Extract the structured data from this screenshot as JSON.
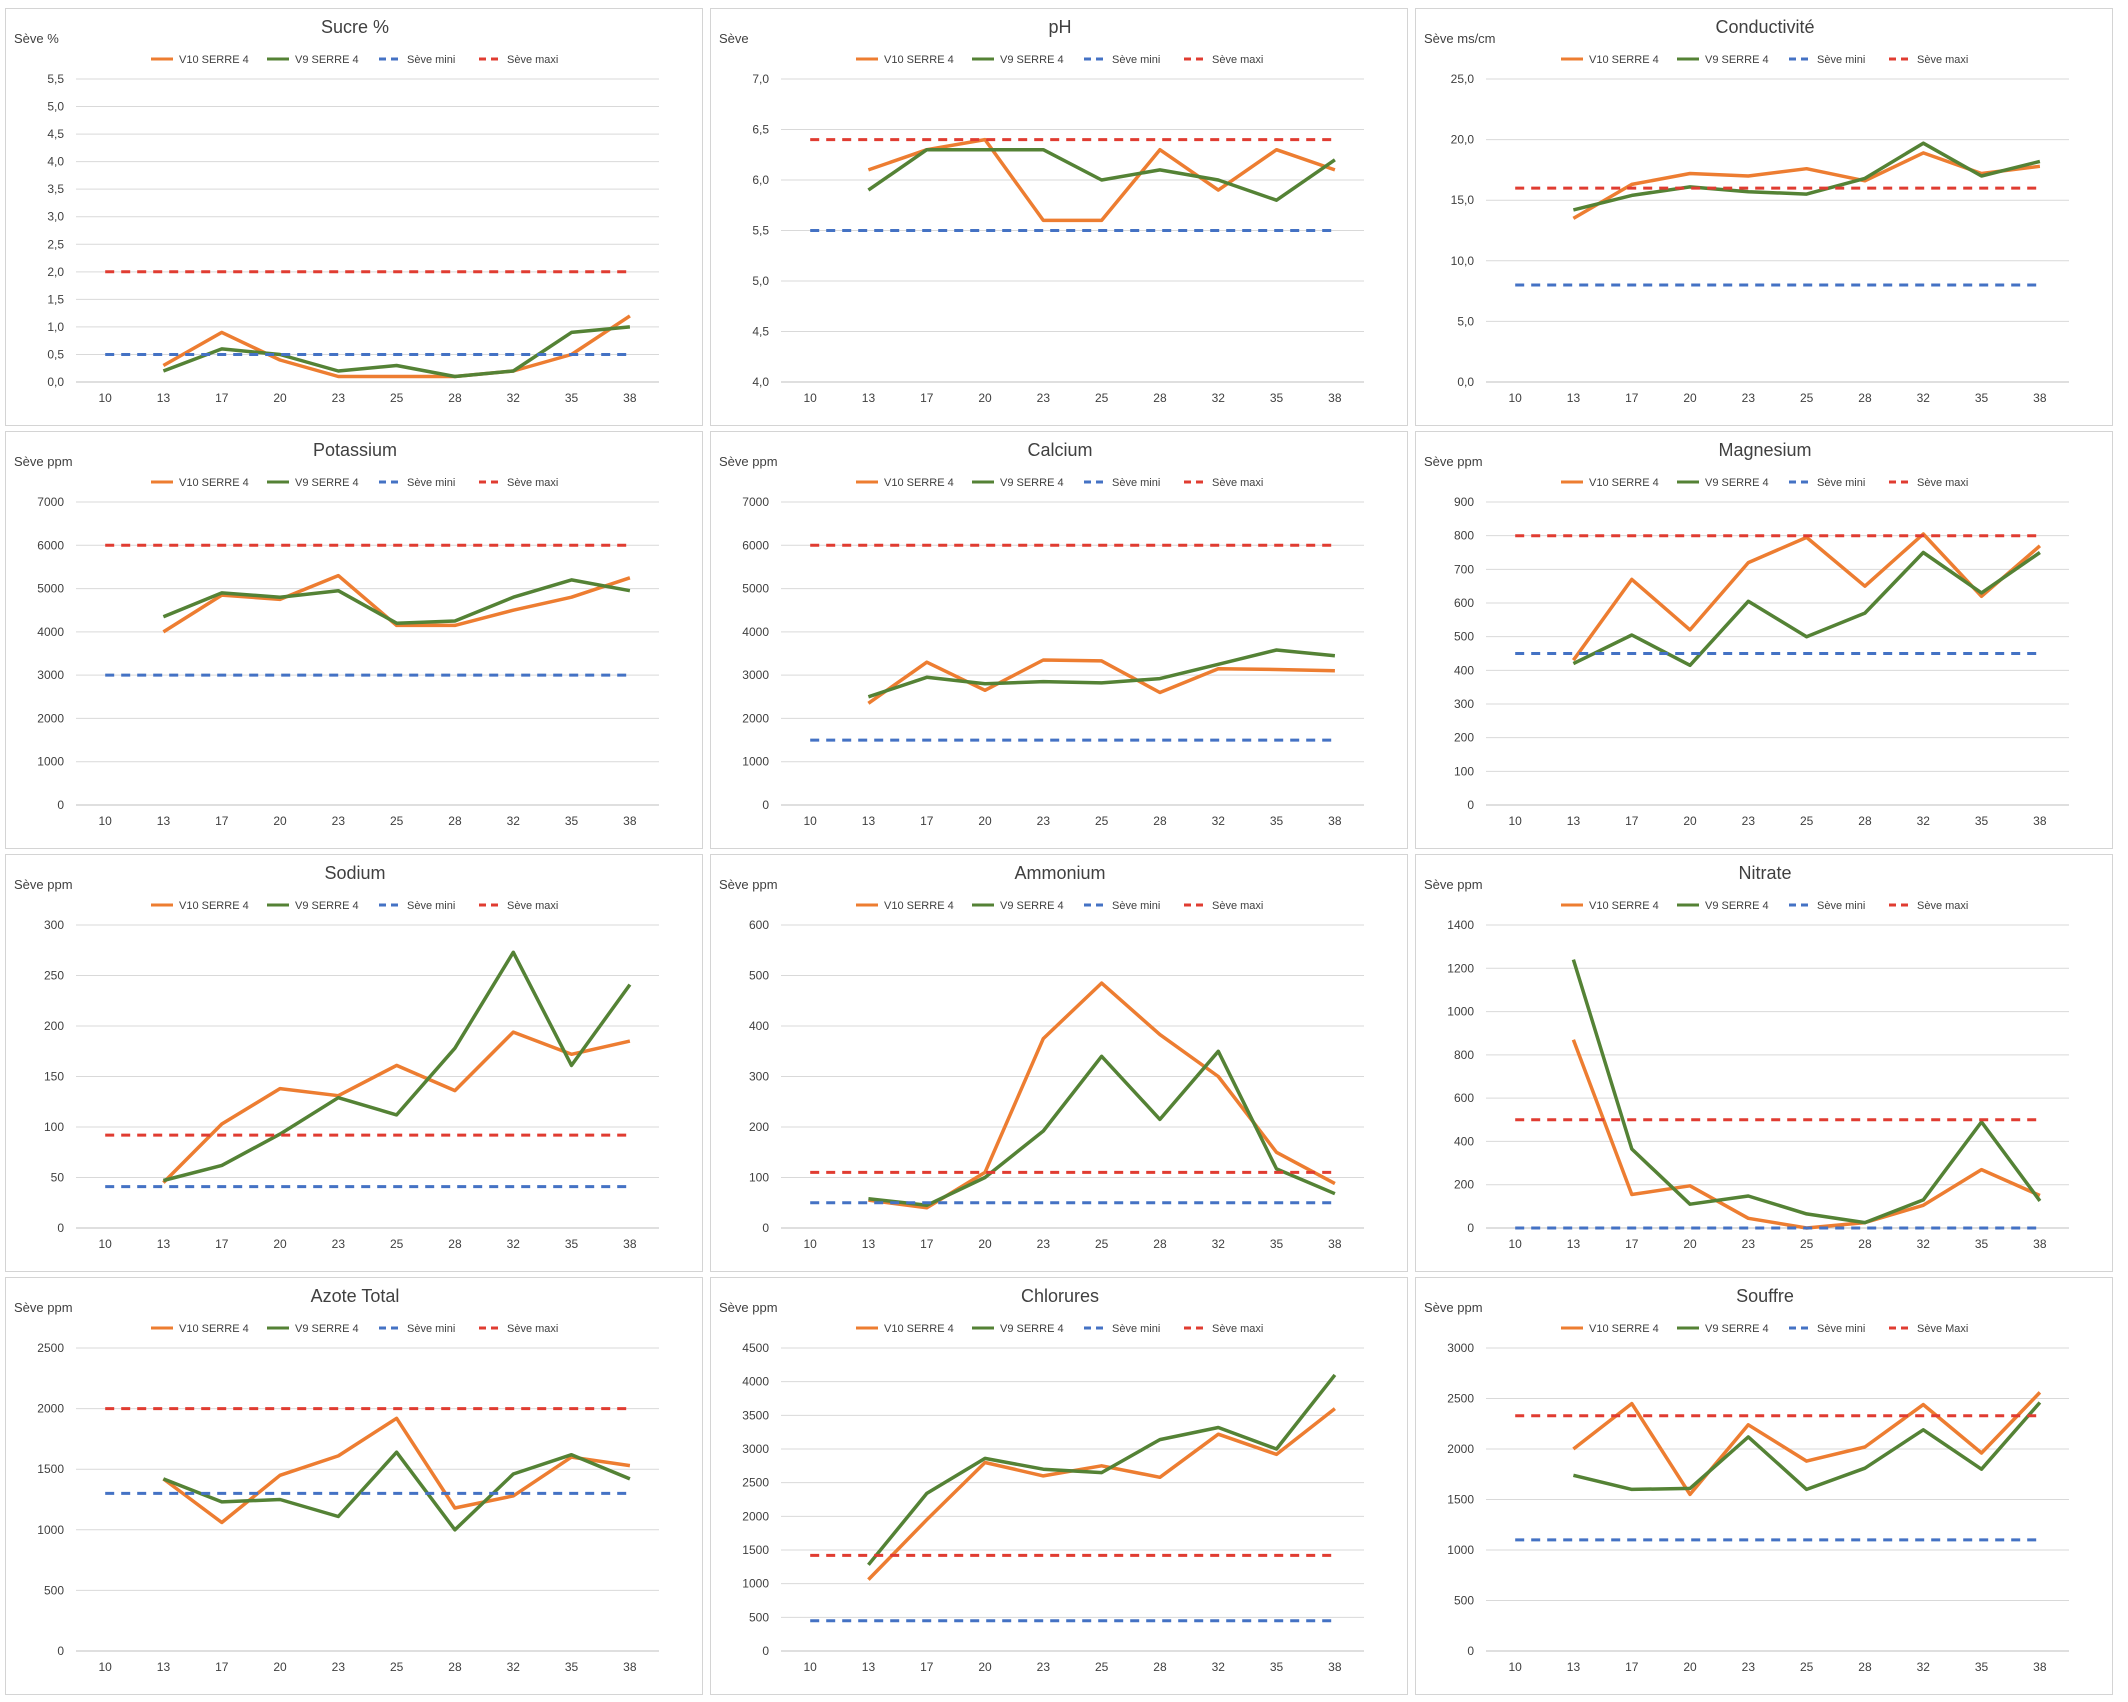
{
  "colors": {
    "v10": "#ed7d31",
    "v9": "#548235",
    "mini": "#4472c4",
    "maxi": "#e03c31"
  },
  "chart_data": [
    {
      "type": "line",
      "title": "Sucre %",
      "ylabel": "Sève %",
      "ylim": [
        0,
        5.5
      ],
      "yticks": [
        "0,0",
        "0,5",
        "1,0",
        "1,5",
        "2,0",
        "2,5",
        "3,0",
        "3,5",
        "4,0",
        "4,5",
        "5,0",
        "5,5"
      ],
      "categories": [
        "10",
        "13",
        "17",
        "20",
        "23",
        "25",
        "28",
        "32",
        "35",
        "38"
      ],
      "legend": "top",
      "series": [
        {
          "name": "V10 SERRE 4",
          "kind": "v10",
          "values": [
            null,
            0.3,
            0.9,
            0.4,
            0.1,
            0.1,
            0.1,
            0.2,
            0.5,
            1.2
          ]
        },
        {
          "name": "V9 SERRE 4",
          "kind": "v9",
          "values": [
            null,
            0.2,
            0.6,
            0.5,
            0.2,
            0.3,
            0.1,
            0.2,
            0.9,
            1.0
          ]
        },
        {
          "name": "Sève mini",
          "kind": "mini",
          "values": [
            0.5,
            0.5,
            0.5,
            0.5,
            0.5,
            0.5,
            0.5,
            0.5,
            0.5,
            0.5
          ]
        },
        {
          "name": "Sève maxi",
          "kind": "maxi",
          "values": [
            2.0,
            2.0,
            2.0,
            2.0,
            2.0,
            2.0,
            2.0,
            2.0,
            2.0,
            2.0
          ]
        }
      ]
    },
    {
      "type": "line",
      "title": "pH",
      "ylabel": "Sève",
      "ylim": [
        4.0,
        7.0
      ],
      "yticks": [
        "4,0",
        "4,5",
        "5,0",
        "5,5",
        "6,0",
        "6,5",
        "7,0"
      ],
      "categories": [
        "10",
        "13",
        "17",
        "20",
        "23",
        "25",
        "28",
        "32",
        "35",
        "38"
      ],
      "legend": "top",
      "series": [
        {
          "name": "V10 SERRE 4",
          "kind": "v10",
          "values": [
            null,
            6.1,
            6.3,
            6.4,
            5.6,
            5.6,
            6.3,
            5.9,
            6.3,
            6.1
          ]
        },
        {
          "name": "V9 SERRE 4",
          "kind": "v9",
          "values": [
            null,
            5.9,
            6.3,
            6.3,
            6.3,
            6.0,
            6.1,
            6.0,
            5.8,
            6.2
          ]
        },
        {
          "name": "Sève mini",
          "kind": "mini",
          "values": [
            5.5,
            5.5,
            5.5,
            5.5,
            5.5,
            5.5,
            5.5,
            5.5,
            5.5,
            5.5
          ]
        },
        {
          "name": "Sève maxi",
          "kind": "maxi",
          "values": [
            6.4,
            6.4,
            6.4,
            6.4,
            6.4,
            6.4,
            6.4,
            6.4,
            6.4,
            6.4
          ]
        }
      ]
    },
    {
      "type": "line",
      "title": "Conductivité",
      "ylabel": "Sève ms/cm",
      "ylim": [
        0,
        25
      ],
      "yticks": [
        "0,0",
        "5,0",
        "10,0",
        "15,0",
        "20,0",
        "25,0"
      ],
      "categories": [
        "10",
        "13",
        "17",
        "20",
        "23",
        "25",
        "28",
        "32",
        "35",
        "38"
      ],
      "legend": "top",
      "series": [
        {
          "name": "V10 SERRE 4",
          "kind": "v10",
          "values": [
            null,
            13.5,
            16.3,
            17.2,
            17.0,
            17.6,
            16.6,
            18.9,
            17.2,
            17.8
          ]
        },
        {
          "name": "V9 SERRE 4",
          "kind": "v9",
          "values": [
            null,
            14.2,
            15.4,
            16.1,
            15.7,
            15.5,
            16.8,
            19.7,
            17.0,
            18.2
          ]
        },
        {
          "name": "Sève mini",
          "kind": "mini",
          "values": [
            8,
            8,
            8,
            8,
            8,
            8,
            8,
            8,
            8,
            8
          ]
        },
        {
          "name": "Sève maxi",
          "kind": "maxi",
          "values": [
            16,
            16,
            16,
            16,
            16,
            16,
            16,
            16,
            16,
            16
          ]
        }
      ]
    },
    {
      "type": "line",
      "title": "Potassium",
      "ylabel": "Sève ppm",
      "ylim": [
        0,
        7000
      ],
      "yticks": [
        "0",
        "1000",
        "2000",
        "3000",
        "4000",
        "5000",
        "6000",
        "7000"
      ],
      "categories": [
        "10",
        "13",
        "17",
        "20",
        "23",
        "25",
        "28",
        "32",
        "35",
        "38"
      ],
      "legend": "top",
      "series": [
        {
          "name": "V10 SERRE 4",
          "kind": "v10",
          "values": [
            null,
            4000,
            4850,
            4750,
            5300,
            4150,
            4150,
            4500,
            4800,
            5250
          ]
        },
        {
          "name": "V9 SERRE 4",
          "kind": "v9",
          "values": [
            null,
            4350,
            4900,
            4800,
            4950,
            4200,
            4250,
            4800,
            5200,
            4950
          ]
        },
        {
          "name": "Sève mini",
          "kind": "mini",
          "values": [
            3000,
            3000,
            3000,
            3000,
            3000,
            3000,
            3000,
            3000,
            3000,
            3000
          ]
        },
        {
          "name": "Sève maxi",
          "kind": "maxi",
          "values": [
            6000,
            6000,
            6000,
            6000,
            6000,
            6000,
            6000,
            6000,
            6000,
            6000
          ]
        }
      ]
    },
    {
      "type": "line",
      "title": "Calcium",
      "ylabel": "Sève ppm",
      "ylim": [
        0,
        7000
      ],
      "yticks": [
        "0",
        "1000",
        "2000",
        "3000",
        "4000",
        "5000",
        "6000",
        "7000"
      ],
      "categories": [
        "10",
        "13",
        "17",
        "20",
        "23",
        "25",
        "28",
        "32",
        "35",
        "38"
      ],
      "legend": "top",
      "series": [
        {
          "name": "V10 SERRE 4",
          "kind": "v10",
          "values": [
            null,
            2350,
            3300,
            2650,
            3350,
            3330,
            2600,
            3150,
            3130,
            3100
          ]
        },
        {
          "name": "V9 SERRE 4",
          "kind": "v9",
          "values": [
            null,
            2500,
            2950,
            2800,
            2850,
            2820,
            2920,
            3250,
            3580,
            3450
          ]
        },
        {
          "name": "Sève mini",
          "kind": "mini",
          "values": [
            1500,
            1500,
            1500,
            1500,
            1500,
            1500,
            1500,
            1500,
            1500,
            1500
          ]
        },
        {
          "name": "Sève maxi",
          "kind": "maxi",
          "values": [
            6000,
            6000,
            6000,
            6000,
            6000,
            6000,
            6000,
            6000,
            6000,
            6000
          ]
        }
      ]
    },
    {
      "type": "line",
      "title": "Magnesium",
      "ylabel": "Sève ppm",
      "ylim": [
        0,
        900
      ],
      "yticks": [
        "0",
        "100",
        "200",
        "300",
        "400",
        "500",
        "600",
        "700",
        "800",
        "900"
      ],
      "categories": [
        "10",
        "13",
        "17",
        "20",
        "23",
        "25",
        "28",
        "32",
        "35",
        "38"
      ],
      "legend": "top",
      "series": [
        {
          "name": "V10 SERRE 4",
          "kind": "v10",
          "values": [
            null,
            430,
            670,
            520,
            720,
            795,
            650,
            805,
            620,
            770
          ]
        },
        {
          "name": "V9 SERRE 4",
          "kind": "v9",
          "values": [
            null,
            420,
            505,
            415,
            605,
            500,
            570,
            750,
            630,
            750
          ]
        },
        {
          "name": "Sève mini",
          "kind": "mini",
          "values": [
            450,
            450,
            450,
            450,
            450,
            450,
            450,
            450,
            450,
            450
          ]
        },
        {
          "name": "Sève maxi",
          "kind": "maxi",
          "values": [
            800,
            800,
            800,
            800,
            800,
            800,
            800,
            800,
            800,
            800
          ]
        }
      ]
    },
    {
      "type": "line",
      "title": "Sodium",
      "ylabel": "Sève ppm",
      "ylim": [
        0,
        300
      ],
      "yticks": [
        "0",
        "50",
        "100",
        "150",
        "200",
        "250",
        "300"
      ],
      "categories": [
        "10",
        "13",
        "17",
        "20",
        "23",
        "25",
        "28",
        "32",
        "35",
        "38"
      ],
      "legend": "top",
      "series": [
        {
          "name": "V10 SERRE 4",
          "kind": "v10",
          "values": [
            null,
            45,
            103,
            138,
            131,
            161,
            136,
            194,
            172,
            185
          ]
        },
        {
          "name": "V9 SERRE 4",
          "kind": "v9",
          "values": [
            null,
            47,
            62,
            93,
            129,
            112,
            178,
            273,
            161,
            241
          ]
        },
        {
          "name": "Sève mini",
          "kind": "mini",
          "values": [
            41,
            41,
            41,
            41,
            41,
            41,
            41,
            41,
            41,
            41
          ]
        },
        {
          "name": "Sève maxi",
          "kind": "maxi",
          "values": [
            92,
            92,
            92,
            92,
            92,
            92,
            92,
            92,
            92,
            92
          ]
        }
      ]
    },
    {
      "type": "line",
      "title": "Ammonium",
      "ylabel": "Sève ppm",
      "ylim": [
        0,
        600
      ],
      "yticks": [
        "0",
        "100",
        "200",
        "300",
        "400",
        "500",
        "600"
      ],
      "categories": [
        "10",
        "13",
        "17",
        "20",
        "23",
        "25",
        "28",
        "32",
        "35",
        "38"
      ],
      "legend": "top",
      "series": [
        {
          "name": "V10 SERRE 4",
          "kind": "v10",
          "values": [
            null,
            55,
            40,
            110,
            375,
            485,
            383,
            300,
            150,
            88
          ]
        },
        {
          "name": "V9 SERRE 4",
          "kind": "v9",
          "values": [
            null,
            58,
            45,
            100,
            192,
            340,
            215,
            350,
            117,
            68
          ]
        },
        {
          "name": "Sève mini",
          "kind": "mini",
          "values": [
            50,
            50,
            50,
            50,
            50,
            50,
            50,
            50,
            50,
            50
          ]
        },
        {
          "name": "Sève maxi",
          "kind": "maxi",
          "values": [
            110,
            110,
            110,
            110,
            110,
            110,
            110,
            110,
            110,
            110
          ]
        }
      ]
    },
    {
      "type": "line",
      "title": "Nitrate",
      "ylabel": "Sève ppm",
      "ylim": [
        0,
        1400
      ],
      "yticks": [
        "0",
        "200",
        "400",
        "600",
        "800",
        "1000",
        "1200",
        "1400"
      ],
      "categories": [
        "10",
        "13",
        "17",
        "20",
        "23",
        "25",
        "28",
        "32",
        "35",
        "38"
      ],
      "legend": "top",
      "series": [
        {
          "name": "V10 SERRE 4",
          "kind": "v10",
          "values": [
            null,
            870,
            155,
            195,
            45,
            0,
            25,
            105,
            270,
            150
          ]
        },
        {
          "name": "V9 SERRE 4",
          "kind": "v9",
          "values": [
            null,
            1240,
            365,
            110,
            148,
            65,
            25,
            130,
            490,
            125
          ]
        },
        {
          "name": "Sève mini",
          "kind": "mini",
          "values": [
            0,
            0,
            0,
            0,
            0,
            0,
            0,
            0,
            0,
            0
          ]
        },
        {
          "name": "Sève maxi",
          "kind": "maxi",
          "values": [
            500,
            500,
            500,
            500,
            500,
            500,
            500,
            500,
            500,
            500
          ]
        }
      ]
    },
    {
      "type": "line",
      "title": "Azote Total",
      "ylabel": "Sève ppm",
      "ylim": [
        0,
        2500
      ],
      "yticks": [
        "0",
        "500",
        "1000",
        "1500",
        "2000",
        "2500"
      ],
      "categories": [
        "10",
        "13",
        "17",
        "20",
        "23",
        "25",
        "28",
        "32",
        "35",
        "38"
      ],
      "legend": "top",
      "series": [
        {
          "name": "V10 SERRE 4",
          "kind": "v10",
          "values": [
            null,
            1420,
            1060,
            1450,
            1610,
            1920,
            1180,
            1280,
            1600,
            1530
          ]
        },
        {
          "name": "V9 SERRE 4",
          "kind": "v9",
          "values": [
            null,
            1420,
            1230,
            1250,
            1110,
            1640,
            1000,
            1460,
            1620,
            1420
          ]
        },
        {
          "name": "Sève mini",
          "kind": "mini",
          "values": [
            1300,
            1300,
            1300,
            1300,
            1300,
            1300,
            1300,
            1300,
            1300,
            1300
          ]
        },
        {
          "name": "Sève maxi",
          "kind": "maxi",
          "values": [
            2000,
            2000,
            2000,
            2000,
            2000,
            2000,
            2000,
            2000,
            2000,
            2000
          ]
        }
      ]
    },
    {
      "type": "line",
      "title": "Chlorures",
      "ylabel": "Sève ppm",
      "ylim": [
        0,
        4500
      ],
      "yticks": [
        "0",
        "500",
        "1000",
        "1500",
        "2000",
        "2500",
        "3000",
        "3500",
        "4000",
        "4500"
      ],
      "categories": [
        "10",
        "13",
        "17",
        "20",
        "23",
        "25",
        "28",
        "32",
        "35",
        "38"
      ],
      "legend": "top",
      "series": [
        {
          "name": "V10 SERRE 4",
          "kind": "v10",
          "values": [
            null,
            1060,
            1950,
            2800,
            2600,
            2750,
            2580,
            3220,
            2920,
            3600
          ]
        },
        {
          "name": "V9 SERRE 4",
          "kind": "v9",
          "values": [
            null,
            1280,
            2340,
            2860,
            2700,
            2650,
            3140,
            3320,
            3000,
            4100
          ]
        },
        {
          "name": "Sève mini",
          "kind": "mini",
          "values": [
            450,
            450,
            450,
            450,
            450,
            450,
            450,
            450,
            450,
            450
          ]
        },
        {
          "name": "Sève maxi",
          "kind": "maxi",
          "values": [
            1420,
            1420,
            1420,
            1420,
            1420,
            1420,
            1420,
            1420,
            1420,
            1420
          ]
        }
      ]
    },
    {
      "type": "line",
      "title": "Souffre",
      "ylabel": "Sève ppm",
      "ylim": [
        0,
        3000
      ],
      "yticks": [
        "0",
        "500",
        "1000",
        "1500",
        "2000",
        "2500",
        "3000"
      ],
      "categories": [
        "10",
        "13",
        "17",
        "20",
        "23",
        "25",
        "28",
        "32",
        "35",
        "38"
      ],
      "legend": "top",
      "series": [
        {
          "name": "V10 SERRE 4",
          "kind": "v10",
          "values": [
            null,
            2000,
            2450,
            1550,
            2240,
            1880,
            2020,
            2440,
            1960,
            2560
          ]
        },
        {
          "name": "V9 SERRE 4",
          "kind": "v9",
          "values": [
            null,
            1740,
            1600,
            1610,
            2120,
            1600,
            1810,
            2190,
            1800,
            2460
          ]
        },
        {
          "name": "Sève mini",
          "kind": "mini",
          "values": [
            1100,
            1100,
            1100,
            1100,
            1100,
            1100,
            1100,
            1100,
            1100,
            1100
          ]
        },
        {
          "name": "Sève Maxi",
          "kind": "maxi",
          "values": [
            2330,
            2330,
            2330,
            2330,
            2330,
            2330,
            2330,
            2330,
            2330,
            2330
          ]
        }
      ]
    }
  ]
}
